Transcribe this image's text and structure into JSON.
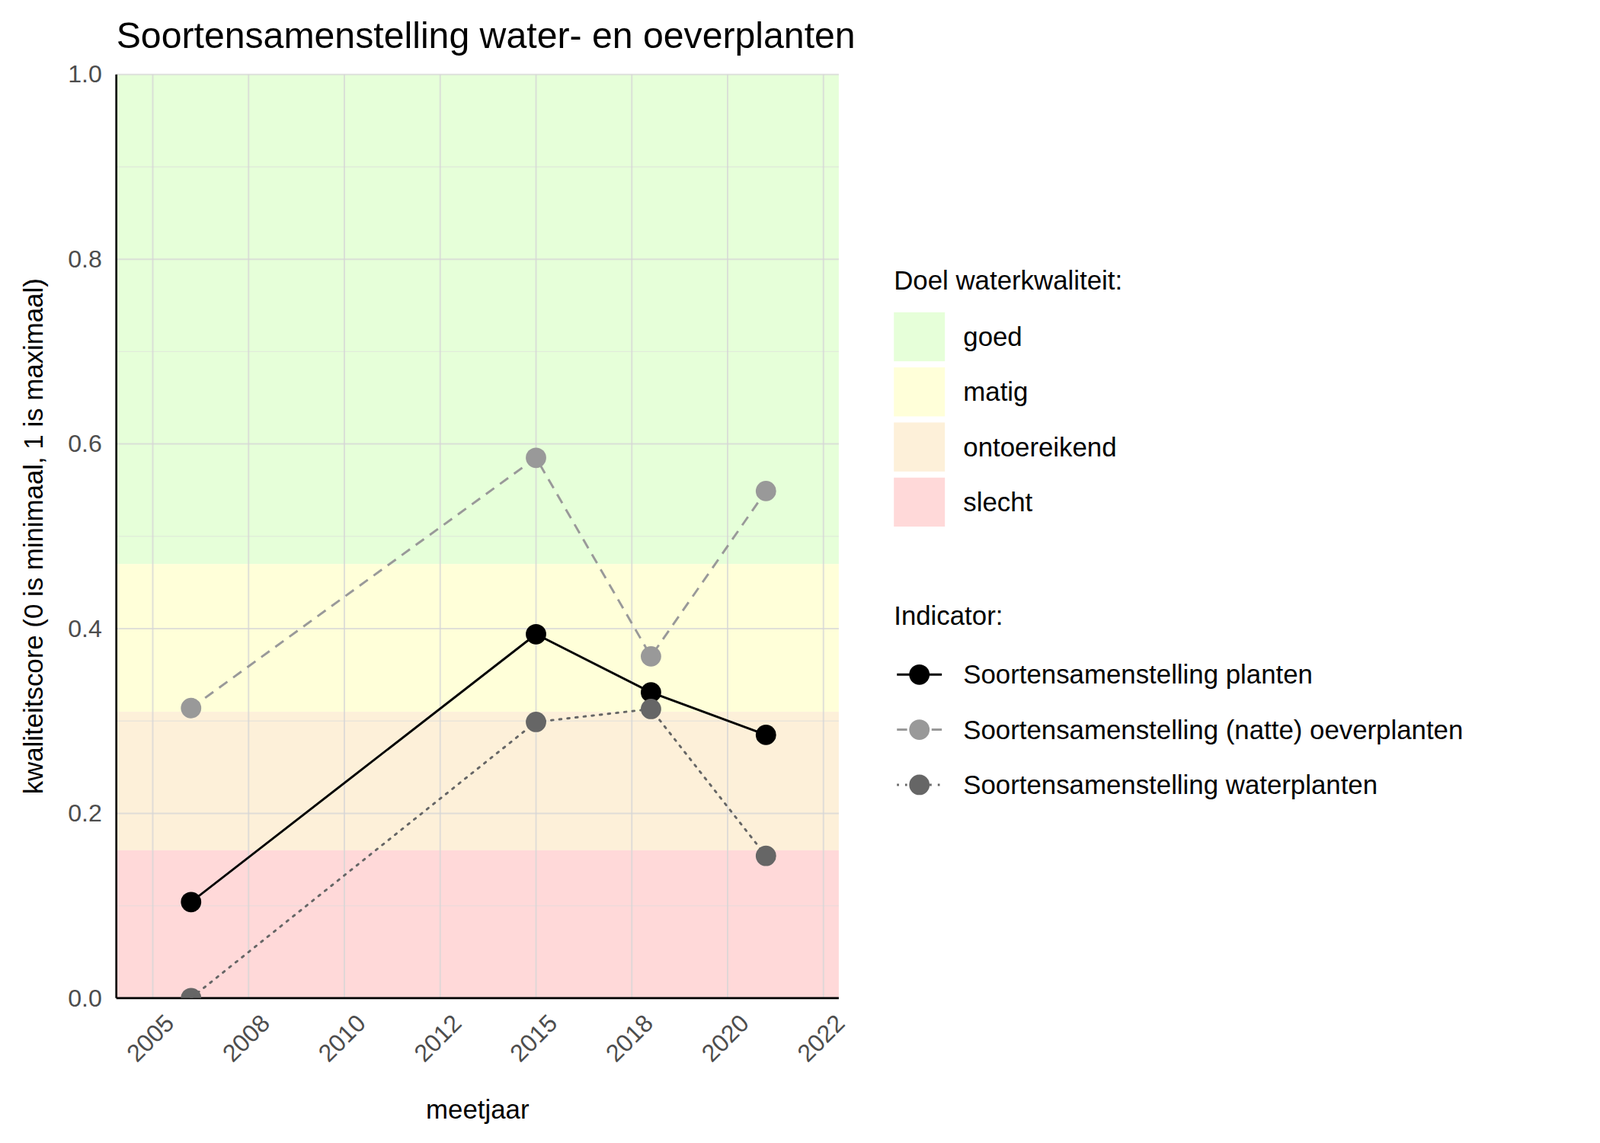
{
  "chart_data": {
    "type": "line",
    "title": "Soortensamenstelling water- en oeverplanten",
    "x_label": "meetjaar",
    "y_label": "kwaliteitscore (0 is minimaal, 1 is maximaal)",
    "x": [
      2006,
      2015,
      2018,
      2021
    ],
    "xlim": [
      2004.05,
      2022.9
    ],
    "xticks": [
      2005,
      {
        "value": 2007.5,
        "label": "2008"
      },
      2010,
      {
        "value": 2012.5,
        "label": "2012"
      },
      2015,
      {
        "value": 2017.5,
        "label": "2018"
      },
      2020,
      {
        "value": 2022.5,
        "label": "2022"
      }
    ],
    "ylim": [
      0,
      1
    ],
    "yticks": [
      {
        "value": 0,
        "label": "0.0"
      },
      0.2,
      0.4,
      0.6,
      0.8,
      {
        "value": 1,
        "label": "1.0"
      }
    ],
    "grid": true,
    "legend": "right",
    "bands_title": "Doel waterkwaliteit:",
    "bands": [
      {
        "name": "goed",
        "color": "#e6ffd9",
        "from": 0.47,
        "to": 1
      },
      {
        "name": "matig",
        "color": "#ffffd9",
        "from": 0.31,
        "to": 0.47
      },
      {
        "name": "ontoereikend",
        "color": "#fdf0d9",
        "from": 0.16,
        "to": 0.31
      },
      {
        "name": "slecht",
        "color": "#ffd9d9",
        "from": 0,
        "to": 0.16
      }
    ],
    "legend_title": "Indicator:",
    "series": [
      {
        "name": "Soortensamenstelling planten",
        "color": "#000000",
        "marker": "circle",
        "line_style": "solid",
        "values": [
          0.104,
          0.394,
          0.331,
          0.285
        ]
      },
      {
        "name": "Soortensamenstelling (natte) oeverplanten",
        "color": "#999999",
        "marker": "circle",
        "line_style": "dashed",
        "values": [
          0.314,
          0.585,
          0.37,
          0.549
        ]
      },
      {
        "name": "Soortensamenstelling waterplanten",
        "color": "#666666",
        "marker": "circle",
        "line_style": "dotted",
        "values": [
          0,
          0.299,
          0.313,
          0.154
        ]
      }
    ]
  }
}
